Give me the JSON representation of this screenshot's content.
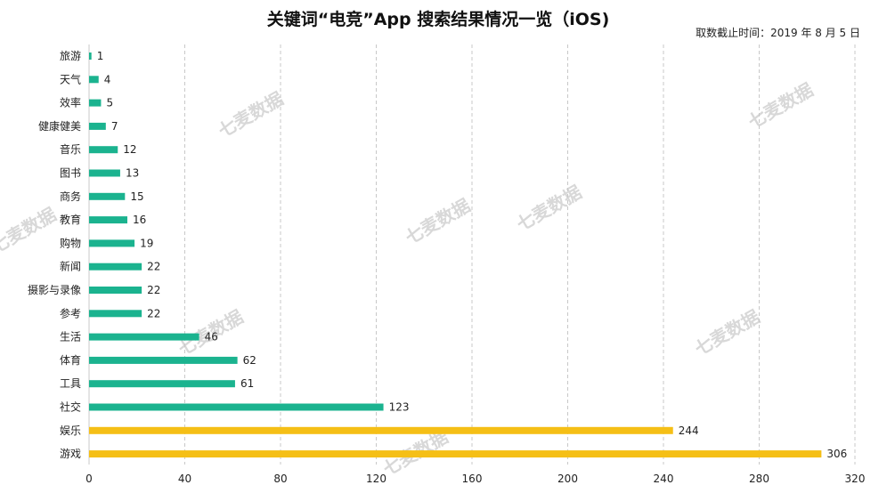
{
  "chart_data": {
    "type": "bar",
    "orientation": "horizontal",
    "title": "关键词“电竞”App 搜索结果情况一览（iOS)",
    "subtitle": "取数截止时间：2019 年 8 月 5 日",
    "categories": [
      "旅游",
      "天气",
      "效率",
      "健康健美",
      "音乐",
      "图书",
      "商务",
      "教育",
      "购物",
      "新闻",
      "摄影与录像",
      "参考",
      "生活",
      "体育",
      "工具",
      "社交",
      "娱乐",
      "游戏"
    ],
    "values": [
      1,
      4,
      5,
      7,
      12,
      13,
      15,
      16,
      19,
      22,
      22,
      22,
      46,
      62,
      61,
      123,
      244,
      306
    ],
    "bar_colors": [
      "#1bb38f",
      "#1bb38f",
      "#1bb38f",
      "#1bb38f",
      "#1bb38f",
      "#1bb38f",
      "#1bb38f",
      "#1bb38f",
      "#1bb38f",
      "#1bb38f",
      "#1bb38f",
      "#1bb38f",
      "#1bb38f",
      "#1bb38f",
      "#1bb38f",
      "#1bb38f",
      "#f5bf16",
      "#f5bf16"
    ],
    "xlim": [
      0,
      320
    ],
    "xticks": [
      0,
      40,
      80,
      120,
      160,
      200,
      240,
      280,
      320
    ],
    "grid": "vertical-dashed",
    "xlabel": "",
    "ylabel": ""
  },
  "watermark": {
    "text": "七麦数据",
    "color": "#d8d8d8"
  }
}
